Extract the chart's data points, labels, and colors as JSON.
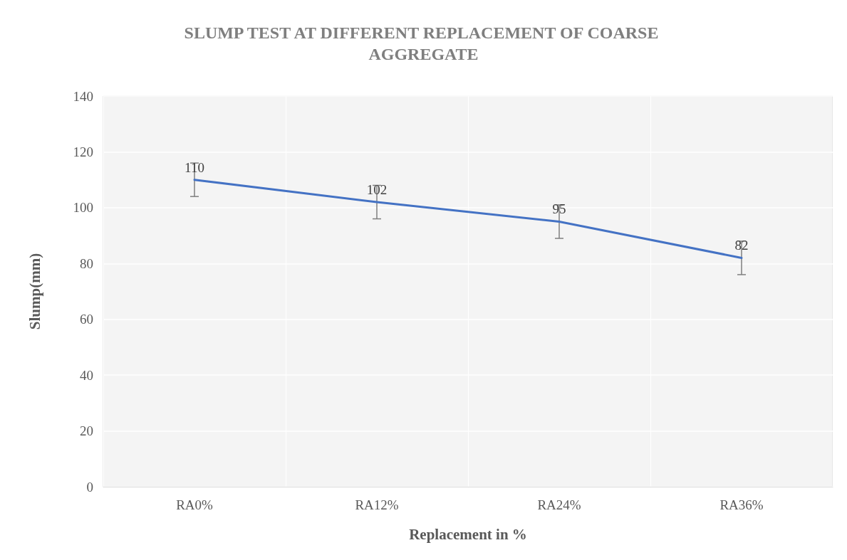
{
  "chart_data": {
    "type": "line",
    "title": "SLUMP TEST AT DIFFERENT REPLACEMENT OF COARSE AGGREGATE",
    "xlabel": "Replacement in %",
    "ylabel": "Slump(mm)",
    "categories": [
      "RA0%",
      "RA12%",
      "RA24%",
      "RA36%"
    ],
    "values": [
      110,
      102,
      95,
      82
    ],
    "errors": [
      6,
      6,
      6,
      6
    ],
    "color": "#4472c4",
    "ylim": [
      0,
      140
    ],
    "yticks": [
      0,
      20,
      40,
      60,
      80,
      100,
      120,
      140
    ],
    "grid": true,
    "marker": "none",
    "line_style": "solid",
    "data_labels": true
  }
}
